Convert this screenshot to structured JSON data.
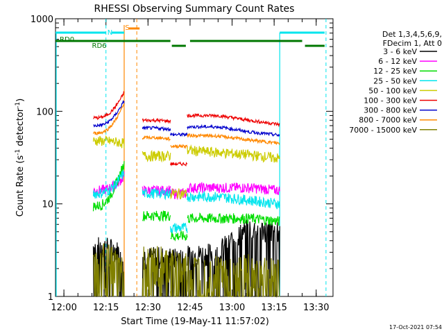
{
  "chart_data": {
    "type": "line",
    "title": "RHESSI Observing Summary Count Rates",
    "xlabel": "Start Time (19-May-11 11:57:02)",
    "ylabel_main": "Count Rate (s",
    "ylabel_sup1": "-1",
    "ylabel_mid": " detector",
    "ylabel_sup2": "-1",
    "ylabel_end": ")",
    "yscale": "log",
    "ylim": [
      1,
      1000
    ],
    "xlim_minutes": [
      -3,
      96
    ],
    "x_tick_minutes": [
      0,
      15,
      30,
      45,
      60,
      75,
      90
    ],
    "x_tick_labels": [
      "12:00",
      "12:15",
      "12:30",
      "12:45",
      "13:00",
      "13:15",
      "13:30"
    ],
    "y_tick_values": [
      1,
      10,
      100,
      1000
    ],
    "y_tick_labels": [
      "1",
      "10",
      "100",
      "1000"
    ],
    "footer_timestamp": "17-Oct-2021 07:54",
    "legend_header": [
      "Det 1,3,4,5,6,9,",
      "FDecim 1, Att 0"
    ],
    "legend_position": "right",
    "segments_minutes": [
      [
        10.5,
        21.5
      ],
      [
        28,
        38
      ],
      [
        38,
        44
      ],
      [
        44,
        77
      ]
    ],
    "series": [
      {
        "name": "3 - 6 keV",
        "color": "#000000",
        "values": [
          3.5,
          2.7,
          2.7,
          2.7,
          2.6,
          2.8,
          3.0,
          5.5,
          5.0
        ]
      },
      {
        "name": "6 - 12 keV",
        "color": "#ff00ff",
        "values": [
          14,
          20,
          14,
          14,
          13,
          15,
          15,
          15,
          14
        ]
      },
      {
        "name": "12 - 25 keV",
        "color": "#00dd00",
        "values": [
          9.5,
          27,
          7.5,
          7.5,
          4.5,
          7,
          7,
          7,
          6.5
        ]
      },
      {
        "name": "25 - 50 keV",
        "color": "#00e5ee",
        "values": [
          13,
          22,
          13,
          13,
          5.5,
          12,
          12,
          11,
          10
        ]
      },
      {
        "name": "50 - 100 keV",
        "color": "#cccc00",
        "values": [
          48,
          45,
          33,
          33,
          13,
          38,
          36,
          34,
          31
        ]
      },
      {
        "name": "100 - 300 keV",
        "color": "#ee0000",
        "values": [
          85,
          160,
          80,
          78,
          27,
          90,
          90,
          80,
          72
        ]
      },
      {
        "name": "300 - 800 keV",
        "color": "#0000cc",
        "values": [
          70,
          130,
          66,
          64,
          56,
          68,
          68,
          60,
          55
        ]
      },
      {
        "name": "800 - 7000 keV",
        "color": "#ff8800",
        "values": [
          58,
          120,
          52,
          50,
          42,
          55,
          54,
          49,
          45
        ]
      },
      {
        "name": "7000 - 15000 keV",
        "color": "#808000",
        "values": [
          2.4,
          1.5,
          2.2,
          2.1,
          2.0,
          1.8,
          1.8,
          1.8,
          1.8
        ]
      }
    ],
    "flags": [
      {
        "label": "N",
        "color": "#00e5ee"
      },
      {
        "label": "S",
        "color": "#ff8800"
      },
      {
        "label": "RD0",
        "color": "#007700"
      },
      {
        "label": "RD6",
        "color": "#007700"
      }
    ]
  }
}
